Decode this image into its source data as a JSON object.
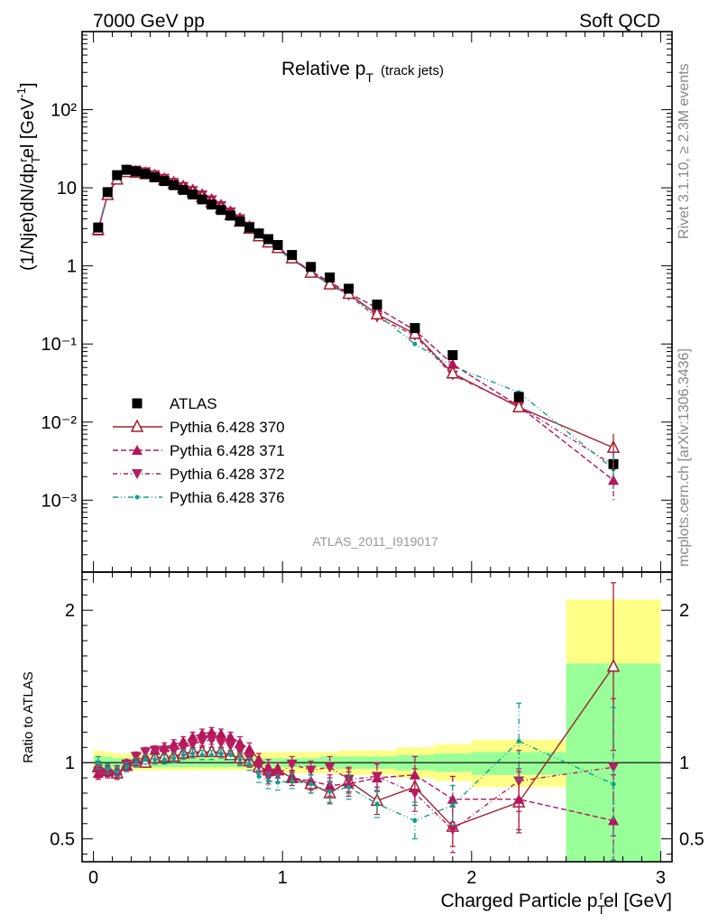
{
  "header": {
    "left": "7000 GeV pp",
    "right": "Soft QCD"
  },
  "side_labels": {
    "rivet": "Rivet 3.1.10, ≥ 2.3M events",
    "mcplots": "mcplots.cern.ch [arXiv:1306.3436]"
  },
  "colors": {
    "atlas": "#000000",
    "p370": "#a0202c",
    "p371": "#b5135a",
    "p372": "#b81d5e",
    "p376": "#10a08c",
    "band_yellow": "#ffff88",
    "band_green": "#99ff99"
  },
  "chart_data": [
    {
      "type": "line",
      "title": "Relative p",
      "title_sub": "T",
      "title_suffix": "(track jets)",
      "ylabel": "(1/Njet)dN/dp",
      "ylabel_sub": "T",
      "ylabel_sup": "r",
      "ylabel_mid": "el [GeV",
      "ylabel_sup2": "-1",
      "ylabel_end": "]",
      "analysis_label": "ATLAS_2011_I919017",
      "yscale": "log",
      "xlim": [
        -0.06,
        3.06
      ],
      "ylim": [
        0.00012,
        1000
      ],
      "y_tick_labels": [
        "10⁻³",
        "10⁻²",
        "10⁻¹",
        "1",
        "10",
        "10²"
      ],
      "x": [
        0.025,
        0.075,
        0.125,
        0.175,
        0.225,
        0.275,
        0.325,
        0.375,
        0.425,
        0.475,
        0.525,
        0.575,
        0.625,
        0.675,
        0.725,
        0.775,
        0.825,
        0.875,
        0.925,
        0.975,
        1.05,
        1.15,
        1.25,
        1.35,
        1.5,
        1.7,
        1.9,
        2.25,
        2.75
      ],
      "series": [
        {
          "name": "ATLAS",
          "marker": "square",
          "color": "#000000",
          "values": [
            3.1,
            8.8,
            14.5,
            17.0,
            16.2,
            15.0,
            13.6,
            12.2,
            10.8,
            9.4,
            8.2,
            7.1,
            6.1,
            5.2,
            4.4,
            3.7,
            3.1,
            2.6,
            2.2,
            1.85,
            1.38,
            0.97,
            0.71,
            0.51,
            0.32,
            0.16,
            0.072,
            0.021,
            0.0029
          ]
        },
        {
          "name": "Pythia 6.428 370",
          "marker": "triangle-open",
          "color": "#a0202c",
          "dash": "",
          "values": [
            2.9,
            8.1,
            12.8,
            15.9,
            15.6,
            15.0,
            14.0,
            12.6,
            11.3,
            10.0,
            8.8,
            7.6,
            6.5,
            5.5,
            4.5,
            3.7,
            3.0,
            2.4,
            2.0,
            1.7,
            1.25,
            0.82,
            0.58,
            0.44,
            0.24,
            0.135,
            0.042,
            0.0155,
            0.0047
          ]
        },
        {
          "name": "Pythia 6.428 371",
          "marker": "triangle-up",
          "color": "#b5135a",
          "dash": "6,3",
          "values": [
            2.8,
            8.3,
            13.0,
            16.2,
            16.1,
            15.6,
            14.7,
            13.5,
            12.2,
            10.9,
            9.7,
            8.5,
            7.3,
            6.2,
            5.1,
            4.2,
            3.3,
            2.65,
            2.1,
            1.75,
            1.25,
            0.86,
            0.62,
            0.45,
            0.29,
            0.15,
            0.055,
            0.016,
            0.0018
          ]
        },
        {
          "name": "Pythia 6.428 372",
          "marker": "triangle-down",
          "color": "#b81d5e",
          "dash": "5,3,1,3",
          "values": [
            2.9,
            8.2,
            13.3,
            16.8,
            16.8,
            16.0,
            14.7,
            13.2,
            11.7,
            10.4,
            9.2,
            8.1,
            7.0,
            5.9,
            4.9,
            4.0,
            3.2,
            2.55,
            2.0,
            1.7,
            1.24,
            0.85,
            0.6,
            0.42,
            0.22,
            0.128,
            0.04,
            0.016,
            0.0028
          ]
        },
        {
          "name": "Pythia 6.428 376",
          "marker": "dot",
          "color": "#10a08c",
          "dash": "6,3,1,3,1,3",
          "values": [
            3.0,
            8.5,
            13.5,
            16.5,
            16.2,
            15.3,
            13.9,
            12.4,
            11.1,
            9.9,
            8.7,
            7.4,
            6.4,
            5.5,
            4.6,
            3.7,
            3.0,
            2.35,
            1.95,
            1.62,
            1.2,
            0.83,
            0.57,
            0.42,
            0.24,
            0.1,
            0.052,
            0.024,
            0.0025
          ]
        }
      ],
      "legend_position": "lower-left",
      "grid": false
    },
    {
      "type": "line",
      "ylabel": "Ratio to ATLAS",
      "xlabel": "Charged Particle p",
      "xlabel_sub": "T",
      "xlabel_sup": "r",
      "xlabel_end": "el [GeV]",
      "xlim": [
        -0.06,
        3.06
      ],
      "ylim": [
        0.35,
        2.25
      ],
      "x_ticks": [
        0,
        1,
        2,
        3
      ],
      "x_tick_labels": [
        "0",
        "1",
        "2",
        "3"
      ],
      "y_ticks": [
        0.5,
        1,
        2
      ],
      "y_tick_labels": [
        "0.5",
        "1",
        "2"
      ],
      "bands": {
        "edges": [
          0,
          0.05,
          0.1,
          0.15,
          0.2,
          0.25,
          0.3,
          0.35,
          0.4,
          0.45,
          0.5,
          0.55,
          0.6,
          0.65,
          0.7,
          0.75,
          0.8,
          0.85,
          0.9,
          0.95,
          1.0,
          1.1,
          1.2,
          1.3,
          1.4,
          1.6,
          1.8,
          2.0,
          2.5,
          3.0
        ],
        "yellow": [
          [
            0.93,
            1.08
          ],
          [
            0.94,
            1.07
          ],
          [
            0.95,
            1.06
          ],
          [
            0.95,
            1.06
          ],
          [
            0.95,
            1.06
          ],
          [
            0.95,
            1.06
          ],
          [
            0.95,
            1.06
          ],
          [
            0.95,
            1.06
          ],
          [
            0.95,
            1.06
          ],
          [
            0.95,
            1.06
          ],
          [
            0.95,
            1.06
          ],
          [
            0.95,
            1.06
          ],
          [
            0.95,
            1.06
          ],
          [
            0.95,
            1.06
          ],
          [
            0.95,
            1.06
          ],
          [
            0.95,
            1.06
          ],
          [
            0.95,
            1.06
          ],
          [
            0.94,
            1.07
          ],
          [
            0.94,
            1.07
          ],
          [
            0.94,
            1.07
          ],
          [
            0.93,
            1.07
          ],
          [
            0.93,
            1.07
          ],
          [
            0.93,
            1.07
          ],
          [
            0.92,
            1.08
          ],
          [
            0.92,
            1.08
          ],
          [
            0.9,
            1.1
          ],
          [
            0.88,
            1.12
          ],
          [
            0.84,
            1.15
          ],
          [
            0.35,
            2.07
          ]
        ],
        "green": [
          [
            0.96,
            1.04
          ],
          [
            0.96,
            1.04
          ],
          [
            0.97,
            1.03
          ],
          [
            0.97,
            1.03
          ],
          [
            0.97,
            1.03
          ],
          [
            0.97,
            1.03
          ],
          [
            0.97,
            1.03
          ],
          [
            0.97,
            1.03
          ],
          [
            0.97,
            1.03
          ],
          [
            0.97,
            1.03
          ],
          [
            0.97,
            1.03
          ],
          [
            0.97,
            1.03
          ],
          [
            0.97,
            1.03
          ],
          [
            0.97,
            1.03
          ],
          [
            0.97,
            1.03
          ],
          [
            0.97,
            1.03
          ],
          [
            0.97,
            1.03
          ],
          [
            0.97,
            1.03
          ],
          [
            0.97,
            1.03
          ],
          [
            0.97,
            1.03
          ],
          [
            0.97,
            1.03
          ],
          [
            0.97,
            1.03
          ],
          [
            0.96,
            1.04
          ],
          [
            0.96,
            1.04
          ],
          [
            0.96,
            1.04
          ],
          [
            0.95,
            1.05
          ],
          [
            0.94,
            1.06
          ],
          [
            0.92,
            1.07
          ],
          [
            0.35,
            1.65
          ]
        ]
      },
      "x": [
        0.025,
        0.075,
        0.125,
        0.175,
        0.225,
        0.275,
        0.325,
        0.375,
        0.425,
        0.475,
        0.525,
        0.575,
        0.625,
        0.675,
        0.725,
        0.775,
        0.825,
        0.875,
        0.925,
        0.975,
        1.05,
        1.15,
        1.25,
        1.35,
        1.5,
        1.7,
        1.9,
        2.25,
        2.75
      ],
      "series": [
        {
          "name": "Pythia 6.428 370",
          "marker": "triangle-open",
          "color": "#a0202c",
          "dash": "",
          "values": [
            0.97,
            0.95,
            0.93,
            0.98,
            1.01,
            1.0,
            1.03,
            1.04,
            1.04,
            1.06,
            1.07,
            1.07,
            1.07,
            1.07,
            1.05,
            1.03,
            1.01,
            0.97,
            0.95,
            0.95,
            0.9,
            0.86,
            0.8,
            0.88,
            0.75,
            0.84,
            0.58,
            0.74,
            1.63
          ],
          "err": [
            0.04,
            0.03,
            0.03,
            0.03,
            0.03,
            0.03,
            0.03,
            0.03,
            0.03,
            0.03,
            0.03,
            0.03,
            0.03,
            0.03,
            0.03,
            0.04,
            0.04,
            0.04,
            0.05,
            0.05,
            0.05,
            0.06,
            0.07,
            0.08,
            0.09,
            0.12,
            0.13,
            0.2,
            0.55
          ]
        },
        {
          "name": "Pythia 6.428 371",
          "marker": "triangle-up",
          "color": "#b5135a",
          "dash": "6,3",
          "values": [
            0.93,
            0.94,
            0.95,
            0.98,
            1.02,
            1.04,
            1.08,
            1.1,
            1.12,
            1.14,
            1.17,
            1.19,
            1.2,
            1.19,
            1.17,
            1.13,
            1.09,
            1.02,
            0.97,
            0.95,
            0.9,
            0.88,
            0.85,
            0.86,
            0.9,
            0.92,
            0.76,
            0.76,
            0.62
          ],
          "err": [
            0.04,
            0.03,
            0.03,
            0.03,
            0.03,
            0.03,
            0.03,
            0.03,
            0.03,
            0.03,
            0.03,
            0.03,
            0.03,
            0.03,
            0.03,
            0.04,
            0.04,
            0.04,
            0.05,
            0.05,
            0.05,
            0.06,
            0.07,
            0.08,
            0.09,
            0.12,
            0.15,
            0.2,
            0.3
          ]
        },
        {
          "name": "Pythia 6.428 372",
          "marker": "triangle-down",
          "color": "#b81d5e",
          "dash": "5,3,1,3",
          "values": [
            0.94,
            0.93,
            0.92,
            0.99,
            1.04,
            1.07,
            1.08,
            1.08,
            1.08,
            1.1,
            1.12,
            1.14,
            1.15,
            1.13,
            1.11,
            1.08,
            1.03,
            0.98,
            0.91,
            0.92,
            0.99,
            0.95,
            0.97,
            0.89,
            0.91,
            0.8,
            0.56,
            0.88,
            0.97
          ],
          "err": [
            0.04,
            0.03,
            0.03,
            0.03,
            0.03,
            0.03,
            0.03,
            0.03,
            0.03,
            0.03,
            0.03,
            0.03,
            0.03,
            0.03,
            0.03,
            0.04,
            0.04,
            0.04,
            0.05,
            0.05,
            0.05,
            0.06,
            0.07,
            0.08,
            0.09,
            0.12,
            0.15,
            0.2,
            0.45
          ]
        },
        {
          "name": "Pythia 6.428 376",
          "marker": "dot",
          "color": "#10a08c",
          "dash": "6,3,1,3,1,3",
          "values": [
            1.0,
            0.96,
            0.94,
            0.97,
            1.0,
            1.02,
            1.02,
            1.02,
            1.03,
            1.05,
            1.06,
            1.05,
            1.05,
            1.06,
            1.05,
            1.02,
            0.99,
            0.91,
            0.88,
            0.87,
            0.88,
            0.86,
            0.81,
            0.84,
            0.73,
            0.62,
            0.72,
            1.14,
            0.86
          ],
          "err": [
            0.04,
            0.03,
            0.03,
            0.03,
            0.03,
            0.03,
            0.03,
            0.03,
            0.03,
            0.03,
            0.03,
            0.03,
            0.03,
            0.03,
            0.03,
            0.04,
            0.04,
            0.04,
            0.05,
            0.05,
            0.05,
            0.06,
            0.07,
            0.08,
            0.09,
            0.12,
            0.13,
            0.25,
            0.5
          ]
        }
      ]
    }
  ]
}
